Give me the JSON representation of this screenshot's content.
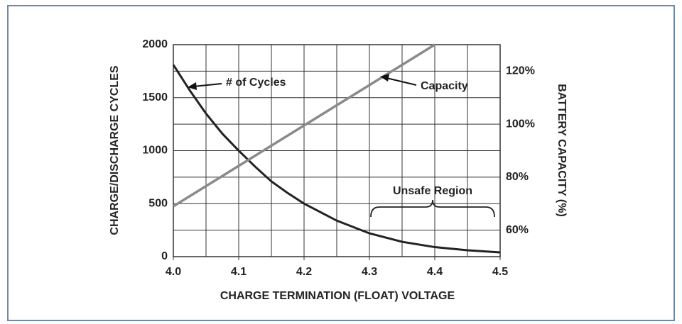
{
  "chart_data": {
    "type": "line",
    "xlabel": "CHARGE TERMINATION (FLOAT) VOLTAGE",
    "ylabel": "CHARGE/DISCHARGE CYCLES",
    "y2label": "BATTERY CAPACITY (%)",
    "xlim": [
      4.0,
      4.5
    ],
    "xticks": [
      {
        "value": 4.0,
        "label": "4.0"
      },
      4.1,
      4.2,
      4.3,
      4.4,
      4.5
    ],
    "xgrid_step": 0.05,
    "ylim": [
      0,
      2000
    ],
    "yticks": [
      0,
      500,
      1000,
      1500,
      2000
    ],
    "y2lim": [
      50,
      130
    ],
    "y2ticks": [
      {
        "value": 60,
        "label": "60%"
      },
      {
        "value": 80,
        "label": "80%"
      },
      {
        "value": 100,
        "label": "100%"
      },
      {
        "value": 120,
        "label": "120%"
      }
    ],
    "grid": true,
    "series": [
      {
        "name": "# of Cycles",
        "color": "#222222",
        "x": [
          4.0,
          4.025,
          4.05,
          4.075,
          4.1,
          4.125,
          4.15,
          4.175,
          4.2,
          4.25,
          4.3,
          4.35,
          4.4,
          4.45,
          4.5
        ],
        "values": [
          1810,
          1570,
          1350,
          1160,
          1000,
          850,
          710,
          600,
          500,
          340,
          220,
          140,
          90,
          60,
          40
        ]
      },
      {
        "name": "Capacity",
        "color": "#8a8a8a",
        "axis": "y2",
        "x": [
          4.0,
          4.4
        ],
        "values": [
          69,
          130
        ]
      }
    ],
    "annotations": [
      {
        "text": "Unsafe Region",
        "x": [
          4.3,
          4.5
        ]
      }
    ]
  }
}
